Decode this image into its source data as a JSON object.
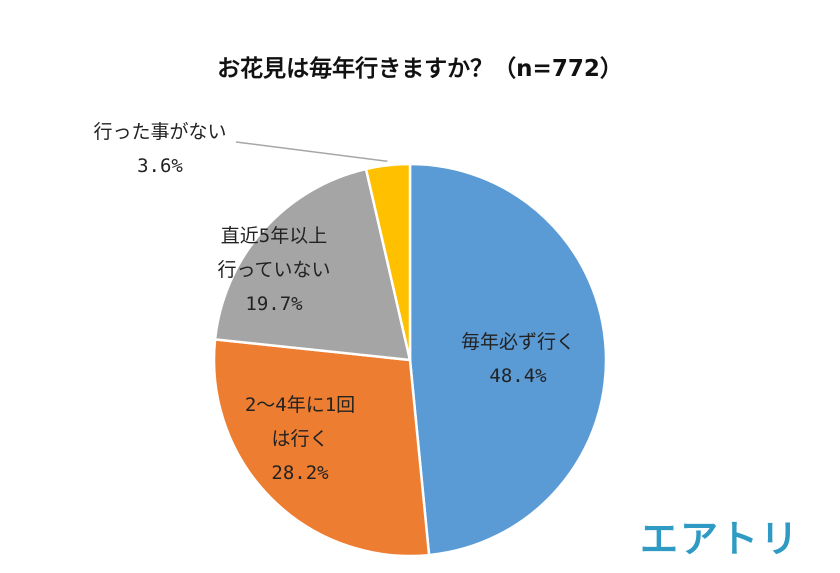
{
  "chart_data": {
    "type": "pie",
    "title": "お花見は毎年行きますか？（n=772）",
    "slices": [
      {
        "label_lines": [
          "毎年必ず行く"
        ],
        "value": 48.4,
        "value_label": "48.4%",
        "color": "#5b9bd5"
      },
      {
        "label_lines": [
          "2～4年に1回",
          "は行く"
        ],
        "value": 28.2,
        "value_label": "28.2%",
        "color": "#ed7d31"
      },
      {
        "label_lines": [
          "直近5年以上",
          "行っていない"
        ],
        "value": 19.7,
        "value_label": "19.7%",
        "color": "#a5a5a5"
      },
      {
        "label_lines": [
          "行った事がない"
        ],
        "value": 3.6,
        "value_label": "3.6%",
        "color": "#ffc000"
      }
    ],
    "start": "12 o'clock",
    "direction": "clockwise",
    "legend": "none"
  },
  "logo": {
    "text": "エアトリ",
    "color": "#2f9bc4"
  }
}
